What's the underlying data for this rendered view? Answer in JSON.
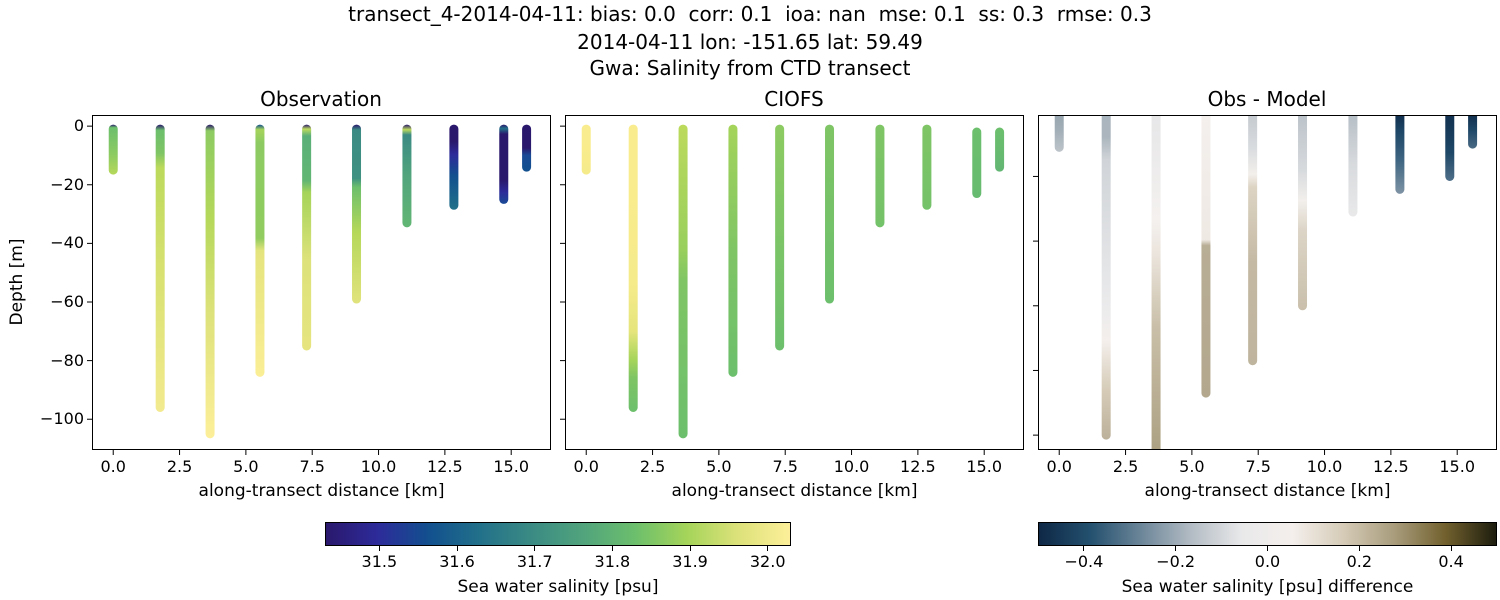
{
  "title": {
    "line1": "transect_4-2014-04-11: bias: 0.0  corr: 0.1  ioa: nan  mse: 0.1  ss: 0.3  rmse: 0.3",
    "line2": "2014-04-11 lon: -151.65 lat: 59.49",
    "line3": "Gwa: Salinity from CTD transect"
  },
  "panels": [
    {
      "title": "Observation",
      "xlabel": "along-transect distance [km]",
      "ylabel": "Depth [m]"
    },
    {
      "title": "CIOFS",
      "xlabel": "along-transect distance [km]",
      "ylabel": ""
    },
    {
      "title": "Obs - Model",
      "xlabel": "along-transect distance [km]",
      "ylabel": ""
    }
  ],
  "axes": {
    "xticks": [
      "0.0",
      "2.5",
      "5.0",
      "7.5",
      "10.0",
      "12.5",
      "15.0"
    ],
    "xtick_values": [
      0,
      2.5,
      5,
      7.5,
      10,
      12.5,
      15
    ],
    "yticks": [
      "0",
      "−20",
      "−40",
      "−60",
      "−80",
      "−100"
    ],
    "ytick_values": [
      0,
      -20,
      -40,
      -60,
      -80,
      -100
    ]
  },
  "colorbars": {
    "salinity": {
      "label": "Sea water salinity [psu]",
      "ticks": [
        "31.5",
        "31.6",
        "31.7",
        "31.8",
        "31.9",
        "32.0"
      ],
      "tick_values": [
        31.5,
        31.6,
        31.7,
        31.8,
        31.9,
        32.0
      ],
      "range": [
        31.43,
        32.03
      ],
      "colormap": "haline",
      "stops": [
        "#2a186c",
        "#2d2b9a",
        "#12508e",
        "#22718a",
        "#3b8b84",
        "#51a47c",
        "#6cbf6c",
        "#a5d45a",
        "#dde27a",
        "#fdef9a"
      ]
    },
    "difference": {
      "label": "Sea water salinity [psu] difference",
      "ticks": [
        "−0.4",
        "−0.2",
        "0.0",
        "0.2",
        "0.4"
      ],
      "tick_values": [
        -0.4,
        -0.2,
        0.0,
        0.2,
        0.4
      ],
      "range": [
        -0.5,
        0.5
      ],
      "colormap": "diff",
      "stops": [
        "#0e2846",
        "#23506e",
        "#6b8598",
        "#b3bcc4",
        "#e9e9ea",
        "#f4efec",
        "#d5cbb7",
        "#a89c7c",
        "#72612e",
        "#1d1d0e"
      ]
    }
  },
  "chart_data": [
    {
      "type": "scatter",
      "title": "Observation",
      "xlabel": "along-transect distance [km]",
      "ylabel": "Depth [m]",
      "xlim": [
        -0.8,
        16.5
      ],
      "ylim": [
        -110.5,
        3.8
      ],
      "colorbar": "salinity",
      "casts": [
        {
          "x": 0.0,
          "top": -1,
          "bottom": -15,
          "colors": [
            [
              0,
              "#2a186c"
            ],
            [
              0.06,
              "#6cbf6c"
            ],
            [
              0.6,
              "#8dcb62"
            ],
            [
              1,
              "#b5d85a"
            ]
          ]
        },
        {
          "x": 1.77,
          "top": -1,
          "bottom": -96,
          "colors": [
            [
              0,
              "#2a186c"
            ],
            [
              0.02,
              "#6cbf6c"
            ],
            [
              0.1,
              "#7fc565"
            ],
            [
              0.15,
              "#bcda5c"
            ],
            [
              0.5,
              "#d7e170"
            ],
            [
              1,
              "#f3ea8f"
            ]
          ]
        },
        {
          "x": 3.65,
          "top": -1,
          "bottom": -105,
          "colors": [
            [
              0,
              "#2a186c"
            ],
            [
              0.02,
              "#8dcb62"
            ],
            [
              0.3,
              "#b5d85a"
            ],
            [
              0.6,
              "#dde27a"
            ],
            [
              1,
              "#fdef9a"
            ]
          ]
        },
        {
          "x": 5.53,
          "top": -1,
          "bottom": -84,
          "colors": [
            [
              0,
              "#12508e"
            ],
            [
              0.02,
              "#a5d45a"
            ],
            [
              0.07,
              "#8dcb62"
            ],
            [
              0.45,
              "#90cc5f"
            ],
            [
              0.5,
              "#e4e47d"
            ],
            [
              1,
              "#fbee96"
            ]
          ]
        },
        {
          "x": 7.29,
          "top": -1,
          "bottom": -75,
          "colors": [
            [
              0,
              "#2a186c"
            ],
            [
              0.02,
              "#bcda5c"
            ],
            [
              0.05,
              "#5aaf79"
            ],
            [
              0.25,
              "#62b673"
            ],
            [
              0.3,
              "#a5d45a"
            ],
            [
              0.6,
              "#dde27a"
            ],
            [
              1,
              "#e6e47f"
            ]
          ]
        },
        {
          "x": 9.17,
          "top": -1,
          "bottom": -59,
          "colors": [
            [
              0,
              "#2a186c"
            ],
            [
              0.03,
              "#3b8b84"
            ],
            [
              0.3,
              "#3f9181"
            ],
            [
              0.35,
              "#6cbf6c"
            ],
            [
              0.6,
              "#b5d85a"
            ],
            [
              1,
              "#e1e37c"
            ]
          ]
        },
        {
          "x": 11.07,
          "top": -1,
          "bottom": -33,
          "colors": [
            [
              0,
              "#2a186c"
            ],
            [
              0.05,
              "#bcda5c"
            ],
            [
              0.1,
              "#3b8b84"
            ],
            [
              0.5,
              "#51a47c"
            ],
            [
              1,
              "#62b673"
            ]
          ]
        },
        {
          "x": 12.84,
          "top": -1,
          "bottom": -27,
          "colors": [
            [
              0,
              "#2a186c"
            ],
            [
              0.2,
              "#2a186c"
            ],
            [
              0.35,
              "#2d2b9a"
            ],
            [
              0.6,
              "#12508e"
            ],
            [
              1,
              "#22718a"
            ]
          ]
        },
        {
          "x": 14.72,
          "top": -1,
          "bottom": -25,
          "colors": [
            [
              0,
              "#2a186c"
            ],
            [
              0.05,
              "#22718a"
            ],
            [
              0.12,
              "#2a186c"
            ],
            [
              0.7,
              "#2a186c"
            ],
            [
              0.85,
              "#2d2b9a"
            ],
            [
              1,
              "#1a4a95"
            ]
          ]
        },
        {
          "x": 15.58,
          "top": -1,
          "bottom": -14,
          "colors": [
            [
              0,
              "#2a186c"
            ],
            [
              0.5,
              "#2a186c"
            ],
            [
              0.65,
              "#1a4a95"
            ],
            [
              1,
              "#12508e"
            ]
          ]
        }
      ]
    },
    {
      "type": "scatter",
      "title": "CIOFS",
      "xlabel": "along-transect distance [km]",
      "xlim": [
        -0.8,
        16.5
      ],
      "ylim": [
        -110.5,
        3.8
      ],
      "colorbar": "salinity",
      "casts": [
        {
          "x": 0.0,
          "top": -1,
          "bottom": -15,
          "colors": [
            [
              0,
              "#f9ec8f"
            ],
            [
              1,
              "#f6eb8b"
            ]
          ]
        },
        {
          "x": 1.77,
          "top": -1,
          "bottom": -96,
          "colors": [
            [
              0,
              "#f9ec8f"
            ],
            [
              0.55,
              "#f6eb8b"
            ],
            [
              0.72,
              "#e5e57c"
            ],
            [
              0.82,
              "#a5d45a"
            ],
            [
              0.88,
              "#7fc565"
            ],
            [
              1,
              "#6cbf6c"
            ]
          ]
        },
        {
          "x": 3.65,
          "top": -1,
          "bottom": -105,
          "colors": [
            [
              0,
              "#bcda5c"
            ],
            [
              0.4,
              "#98cf5d"
            ],
            [
              0.5,
              "#7fc565"
            ],
            [
              1,
              "#6cbf6c"
            ]
          ]
        },
        {
          "x": 5.53,
          "top": -1,
          "bottom": -84,
          "colors": [
            [
              0,
              "#a5d45a"
            ],
            [
              0.5,
              "#7fc565"
            ],
            [
              1,
              "#6cbf6c"
            ]
          ]
        },
        {
          "x": 7.29,
          "top": -1,
          "bottom": -75,
          "colors": [
            [
              0,
              "#8dcb62"
            ],
            [
              1,
              "#6cbf6c"
            ]
          ]
        },
        {
          "x": 9.17,
          "top": -1,
          "bottom": -59,
          "colors": [
            [
              0,
              "#7fc565"
            ],
            [
              1,
              "#6cbf6c"
            ]
          ]
        },
        {
          "x": 11.07,
          "top": -1,
          "bottom": -33,
          "colors": [
            [
              0,
              "#7fc565"
            ],
            [
              1,
              "#74c269"
            ]
          ]
        },
        {
          "x": 12.84,
          "top": -1,
          "bottom": -27,
          "colors": [
            [
              0,
              "#7fc565"
            ],
            [
              1,
              "#74c269"
            ]
          ]
        },
        {
          "x": 14.72,
          "top": -2,
          "bottom": -23,
          "colors": [
            [
              0,
              "#6cbf6c"
            ],
            [
              1,
              "#66bb70"
            ]
          ]
        },
        {
          "x": 15.58,
          "top": -2,
          "bottom": -14,
          "colors": [
            [
              0,
              "#6cbf6c"
            ],
            [
              1,
              "#62b673"
            ]
          ]
        }
      ]
    },
    {
      "type": "scatter",
      "title": "Obs - Model",
      "xlabel": "along-transect distance [km]",
      "xlim": [
        -0.8,
        16.5
      ],
      "ylim": [
        -104.6,
        -1
      ],
      "colorbar": "difference",
      "casts": [
        {
          "x": 0.0,
          "top": -1,
          "bottom": -11,
          "colors": [
            [
              0,
              "#94a3ae"
            ],
            [
              0.5,
              "#a3afb8"
            ],
            [
              1,
              "#bdc4ca"
            ]
          ]
        },
        {
          "x": 1.77,
          "top": -1,
          "bottom": -100,
          "colors": [
            [
              0,
              "#a9b5be"
            ],
            [
              0.08,
              "#aab5bd"
            ],
            [
              0.15,
              "#d0d4d8"
            ],
            [
              0.6,
              "#ebebec"
            ],
            [
              0.7,
              "#f4efec"
            ],
            [
              0.85,
              "#d5cbb7"
            ],
            [
              1,
              "#bcb29b"
            ]
          ]
        },
        {
          "x": 3.65,
          "top": -1,
          "bottom": -110,
          "colors": [
            [
              0,
              "#e6e6e8"
            ],
            [
              0.3,
              "#f4f1ef"
            ],
            [
              0.4,
              "#ebe4dc"
            ],
            [
              0.6,
              "#c9bfa8"
            ],
            [
              1,
              "#a89c7c"
            ]
          ]
        },
        {
          "x": 5.53,
          "top": -1,
          "bottom": -87,
          "colors": [
            [
              0,
              "#f4f0ee"
            ],
            [
              0.45,
              "#efe9e4"
            ],
            [
              0.47,
              "#b8ad95"
            ],
            [
              1,
              "#b3a88e"
            ]
          ]
        },
        {
          "x": 7.29,
          "top": -1,
          "bottom": -77,
          "colors": [
            [
              0,
              "#c2c8ce"
            ],
            [
              0.15,
              "#d9dcdf"
            ],
            [
              0.25,
              "#f3efeb"
            ],
            [
              0.3,
              "#ddd4c4"
            ],
            [
              0.6,
              "#c4b9a3"
            ],
            [
              1,
              "#bfb49d"
            ]
          ]
        },
        {
          "x": 9.17,
          "top": -1,
          "bottom": -60,
          "colors": [
            [
              0,
              "#b9c1c8"
            ],
            [
              0.3,
              "#d7dadd"
            ],
            [
              0.45,
              "#f2efec"
            ],
            [
              0.6,
              "#dcd4c6"
            ],
            [
              1,
              "#c9bfab"
            ]
          ]
        },
        {
          "x": 11.07,
          "top": -1,
          "bottom": -31,
          "colors": [
            [
              0,
              "#b3bcc4"
            ],
            [
              0.5,
              "#d7dadd"
            ],
            [
              1,
              "#e9e9ea"
            ]
          ]
        },
        {
          "x": 12.84,
          "top": -1,
          "bottom": -24,
          "colors": [
            [
              0,
              "#0e2846"
            ],
            [
              0.25,
              "#1e4767"
            ],
            [
              0.6,
              "#3f6682"
            ],
            [
              1,
              "#7e93a4"
            ]
          ]
        },
        {
          "x": 14.72,
          "top": -1,
          "bottom": -20,
          "colors": [
            [
              0,
              "#8d9eac"
            ],
            [
              0.05,
              "#133150"
            ],
            [
              0.6,
              "#1e4767"
            ],
            [
              1,
              "#4f6f89"
            ]
          ]
        },
        {
          "x": 15.58,
          "top": -1,
          "bottom": -10,
          "colors": [
            [
              0,
              "#0e2846"
            ],
            [
              0.5,
              "#1e4767"
            ],
            [
              1,
              "#4a6a84"
            ]
          ]
        }
      ]
    }
  ]
}
